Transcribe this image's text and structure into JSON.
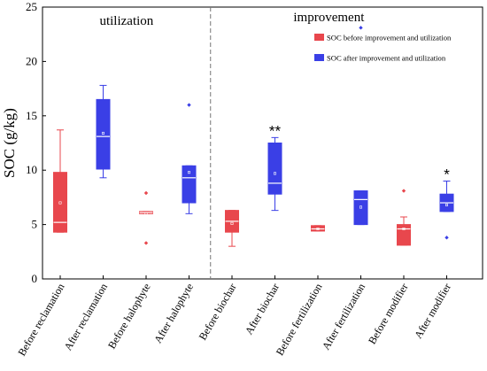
{
  "chart_data": {
    "type": "box",
    "ylabel": "SOC (g/kg)",
    "ylim": [
      0,
      25
    ],
    "yticks": [
      0,
      5,
      10,
      15,
      20,
      25
    ],
    "grid": false,
    "legend_position": "top-right",
    "sections": [
      {
        "label": "utilization"
      },
      {
        "label": "improvement"
      }
    ],
    "legend": [
      {
        "name": "SOC before improvement and utilization",
        "color": "#e8474d"
      },
      {
        "name": "SOC after improvement and utilization",
        "color": "#3a3fe6"
      }
    ],
    "categories": [
      "Before reclamation",
      "After reclamation",
      "Before halophyte",
      "After halophyte",
      "Before biochar",
      "After biochar",
      "Before fertilization",
      "After fertilization",
      "Before modifier",
      "After modifier"
    ],
    "boxes": [
      {
        "group": "before",
        "whisker_low": 4.3,
        "q1": 4.3,
        "median": 5.2,
        "q3": 9.8,
        "whisker_high": 13.7,
        "mean": 7.0,
        "outliers": [],
        "sig": ""
      },
      {
        "group": "after",
        "whisker_low": 9.3,
        "q1": 10.1,
        "median": 13.1,
        "q3": 16.5,
        "whisker_high": 17.8,
        "mean": 13.4,
        "outliers": [],
        "sig": ""
      },
      {
        "group": "before",
        "whisker_low": 6.0,
        "q1": 6.0,
        "median": 6.1,
        "q3": 6.2,
        "whisker_high": 6.2,
        "mean": 6.0,
        "outliers": [
          7.9,
          3.3
        ],
        "sig": ""
      },
      {
        "group": "after",
        "whisker_low": 6.0,
        "q1": 7.0,
        "median": 9.3,
        "q3": 10.4,
        "whisker_high": 10.4,
        "mean": 9.8,
        "outliers": [
          16.0
        ],
        "sig": ""
      },
      {
        "group": "before",
        "whisker_low": 3.0,
        "q1": 4.3,
        "median": 5.3,
        "q3": 6.3,
        "whisker_high": 6.3,
        "mean": 5.1,
        "outliers": [],
        "sig": ""
      },
      {
        "group": "after",
        "whisker_low": 6.3,
        "q1": 7.8,
        "median": 8.8,
        "q3": 12.5,
        "whisker_high": 13.0,
        "mean": 9.7,
        "outliers": [],
        "sig": "**"
      },
      {
        "group": "before",
        "whisker_low": 4.4,
        "q1": 4.4,
        "median": 4.6,
        "q3": 4.9,
        "whisker_high": 4.9,
        "mean": 4.6,
        "outliers": [],
        "sig": ""
      },
      {
        "group": "after",
        "whisker_low": 5.0,
        "q1": 5.0,
        "median": 7.3,
        "q3": 8.1,
        "whisker_high": 8.1,
        "mean": 6.6,
        "outliers": [
          23.1
        ],
        "sig": ""
      },
      {
        "group": "before",
        "whisker_low": 3.1,
        "q1": 3.1,
        "median": 4.6,
        "q3": 5.0,
        "whisker_high": 5.7,
        "mean": 4.6,
        "outliers": [
          8.1
        ],
        "sig": ""
      },
      {
        "group": "after",
        "whisker_low": 6.2,
        "q1": 6.2,
        "median": 7.0,
        "q3": 7.8,
        "whisker_high": 9.0,
        "mean": 6.8,
        "outliers": [
          3.8
        ],
        "sig": "*"
      }
    ]
  }
}
